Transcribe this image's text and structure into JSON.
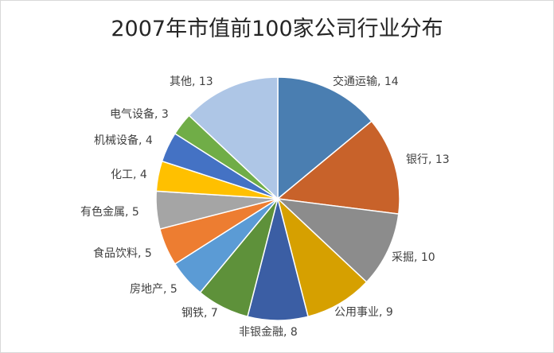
{
  "chart_data": {
    "type": "pie",
    "title": "2007年市值前100家公司行业分布",
    "legend": "none",
    "data_labels": "category, value",
    "slices": [
      {
        "label": "交通运输",
        "value": 14,
        "color": "#4a7eb1"
      },
      {
        "label": "银行",
        "value": 13,
        "color": "#c8622a"
      },
      {
        "label": "采掘",
        "value": 10,
        "color": "#8c8c8c"
      },
      {
        "label": "公用事业",
        "value": 9,
        "color": "#d6a000"
      },
      {
        "label": "非银金融",
        "value": 8,
        "color": "#3b5ea4"
      },
      {
        "label": "钢铁",
        "value": 7,
        "color": "#5e913a"
      },
      {
        "label": "房地产",
        "value": 5,
        "color": "#5b9bd5"
      },
      {
        "label": "食品饮料",
        "value": 5,
        "color": "#ed7d31"
      },
      {
        "label": "有色金属",
        "value": 5,
        "color": "#a5a5a5"
      },
      {
        "label": "化工",
        "value": 4,
        "color": "#ffc000"
      },
      {
        "label": "机械设备",
        "value": 4,
        "color": "#4472c4"
      },
      {
        "label": "电气设备",
        "value": 3,
        "color": "#70ad47"
      },
      {
        "label": "其他",
        "value": 13,
        "color": "#aec6e6"
      }
    ]
  }
}
